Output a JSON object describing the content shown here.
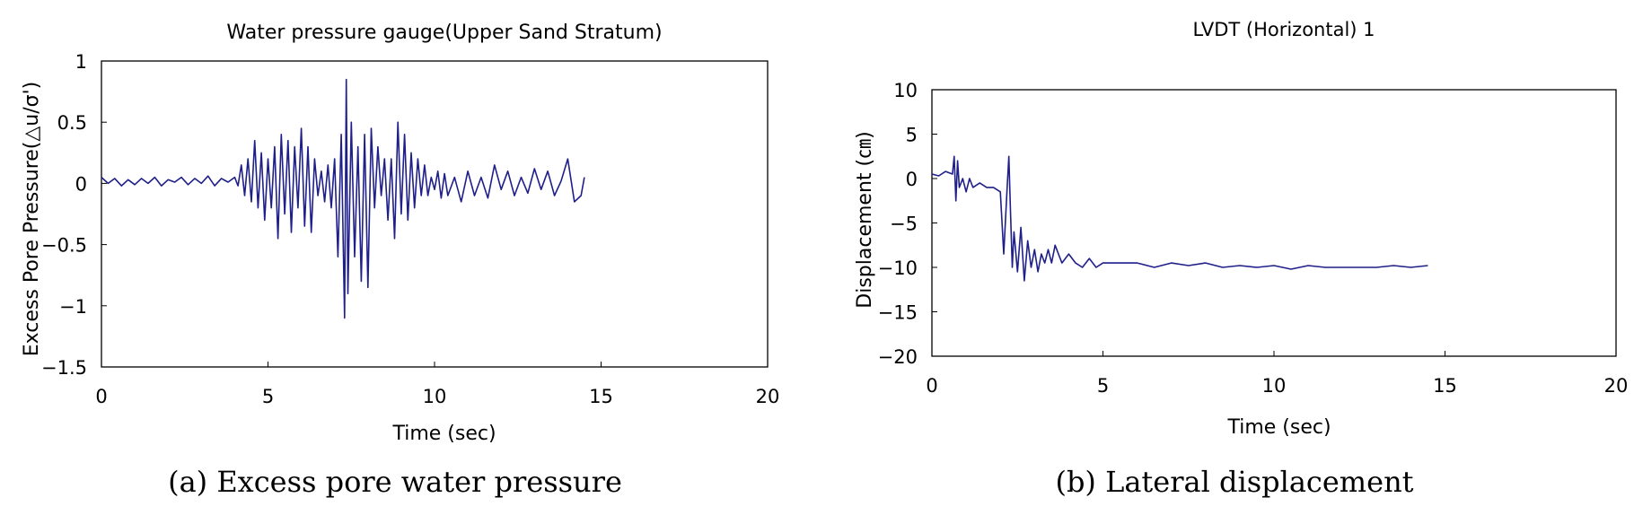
{
  "chart_data": [
    {
      "type": "line",
      "title": "Water pressure gauge(Upper Sand Stratum)",
      "caption": "(a) Excess pore water pressure",
      "xlabel": "Time (sec)",
      "ylabel": "Excess Pore Pressure(△u/σ')",
      "xlim": [
        0,
        20
      ],
      "ylim": [
        -1.5,
        1
      ],
      "x_ticks": [
        0,
        5,
        10,
        15,
        20
      ],
      "y_ticks": [
        1,
        0.5,
        0,
        -0.5,
        -1,
        -1.5
      ],
      "x_tick_labels": [
        "0",
        "5",
        "10",
        "15",
        "20"
      ],
      "y_tick_labels": [
        "1",
        "0.5",
        "0",
        "−0.5",
        "−1",
        "−1.5"
      ],
      "grid": false,
      "line_color": "#1f1f8a",
      "series": [
        {
          "x": [
            0,
            0.2,
            0.4,
            0.6,
            0.8,
            1.0,
            1.2,
            1.4,
            1.6,
            1.8,
            2.0,
            2.2,
            2.4,
            2.6,
            2.8,
            3.0,
            3.2,
            3.4,
            3.6,
            3.8,
            4.0,
            4.1,
            4.2,
            4.3,
            4.4,
            4.5,
            4.6,
            4.7,
            4.8,
            4.9,
            5.0,
            5.1,
            5.2,
            5.3,
            5.4,
            5.5,
            5.6,
            5.7,
            5.8,
            5.9,
            6.0,
            6.1,
            6.2,
            6.3,
            6.4,
            6.5,
            6.6,
            6.7,
            6.8,
            6.9,
            7.0,
            7.1,
            7.2,
            7.3,
            7.35,
            7.4,
            7.5,
            7.6,
            7.7,
            7.8,
            7.9,
            8.0,
            8.1,
            8.2,
            8.3,
            8.4,
            8.5,
            8.6,
            8.7,
            8.8,
            8.9,
            9.0,
            9.1,
            9.2,
            9.3,
            9.4,
            9.5,
            9.6,
            9.7,
            9.8,
            9.9,
            10.0,
            10.1,
            10.2,
            10.3,
            10.4,
            10.6,
            10.8,
            11.0,
            11.2,
            11.4,
            11.6,
            11.8,
            12.0,
            12.2,
            12.4,
            12.6,
            12.8,
            13.0,
            13.2,
            13.4,
            13.6,
            13.8,
            14.0,
            14.2,
            14.4,
            14.5
          ],
          "y": [
            0.05,
            0.0,
            0.04,
            -0.02,
            0.03,
            -0.01,
            0.04,
            0.0,
            0.05,
            -0.02,
            0.03,
            0.01,
            0.05,
            -0.01,
            0.04,
            0.0,
            0.06,
            -0.02,
            0.04,
            0.01,
            0.05,
            -0.02,
            0.15,
            -0.1,
            0.2,
            -0.15,
            0.35,
            -0.2,
            0.25,
            -0.3,
            0.2,
            -0.2,
            0.3,
            -0.45,
            0.4,
            -0.25,
            0.35,
            -0.4,
            0.3,
            -0.2,
            0.45,
            -0.35,
            0.3,
            -0.4,
            0.2,
            -0.1,
            0.1,
            -0.15,
            0.15,
            -0.2,
            0.2,
            -0.6,
            0.4,
            -1.1,
            0.85,
            -0.9,
            0.5,
            -0.6,
            0.3,
            -0.8,
            0.4,
            -0.85,
            0.45,
            -0.2,
            0.3,
            -0.1,
            0.2,
            -0.3,
            0.2,
            -0.45,
            0.5,
            -0.25,
            0.4,
            -0.3,
            0.25,
            -0.2,
            0.2,
            -0.1,
            0.15,
            -0.1,
            0.05,
            -0.05,
            0.1,
            -0.12,
            0.08,
            -0.1,
            0.05,
            -0.15,
            0.1,
            -0.1,
            0.05,
            -0.12,
            0.15,
            -0.05,
            0.1,
            -0.1,
            0.05,
            -0.08,
            0.12,
            -0.05,
            0.1,
            -0.1,
            0.02,
            0.2,
            -0.15,
            -0.1,
            0.05
          ]
        }
      ]
    },
    {
      "type": "line",
      "title": "LVDT (Horizontal) 1",
      "caption": "(b) Lateral displacement",
      "xlabel": "Time (sec)",
      "ylabel": "Displacement (㎝)",
      "xlim": [
        0,
        20
      ],
      "ylim": [
        -20,
        10
      ],
      "x_ticks": [
        0,
        5,
        10,
        15,
        20
      ],
      "y_ticks": [
        10,
        5,
        0,
        -5,
        -10,
        -15,
        -20
      ],
      "x_tick_labels": [
        "0",
        "5",
        "10",
        "15",
        "20"
      ],
      "y_tick_labels": [
        "10",
        "5",
        "0",
        "−5",
        "−10",
        "−15",
        "−20"
      ],
      "grid": false,
      "line_color": "#1f1f8a",
      "series": [
        {
          "x": [
            0,
            0.2,
            0.4,
            0.6,
            0.65,
            0.7,
            0.75,
            0.8,
            0.9,
            1.0,
            1.1,
            1.2,
            1.4,
            1.6,
            1.8,
            2.0,
            2.1,
            2.2,
            2.25,
            2.3,
            2.35,
            2.4,
            2.5,
            2.6,
            2.7,
            2.8,
            2.9,
            3.0,
            3.1,
            3.2,
            3.3,
            3.4,
            3.5,
            3.6,
            3.8,
            4.0,
            4.2,
            4.4,
            4.6,
            4.8,
            5.0,
            5.5,
            6.0,
            6.5,
            7.0,
            7.5,
            8.0,
            8.5,
            9.0,
            9.5,
            10.0,
            10.5,
            11.0,
            11.5,
            12.0,
            12.5,
            13.0,
            13.5,
            14.0,
            14.5
          ],
          "y": [
            0.5,
            0.3,
            0.8,
            0.5,
            2.5,
            -2.5,
            2.0,
            -1.0,
            0.0,
            -1.5,
            0.0,
            -1.0,
            -0.5,
            -1.0,
            -1.0,
            -1.5,
            -8.5,
            -1.0,
            2.5,
            -4.0,
            -10.0,
            -6.0,
            -10.5,
            -5.5,
            -11.5,
            -7.0,
            -10.0,
            -8.0,
            -10.5,
            -8.5,
            -9.5,
            -8.0,
            -9.5,
            -7.5,
            -9.5,
            -8.5,
            -9.5,
            -10.0,
            -9.0,
            -10.0,
            -9.5,
            -9.5,
            -9.5,
            -10.0,
            -9.5,
            -9.8,
            -9.5,
            -10.0,
            -9.8,
            -10.0,
            -9.8,
            -10.2,
            -9.8,
            -10.0,
            -10.0,
            -10.0,
            -10.0,
            -9.8,
            -10.0,
            -9.8
          ]
        }
      ]
    }
  ]
}
